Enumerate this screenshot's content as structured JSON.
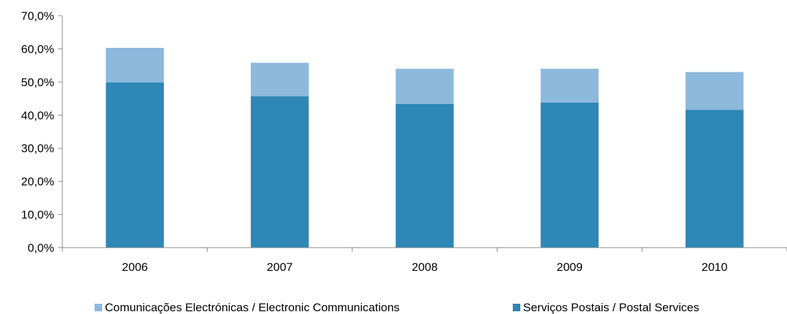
{
  "chart_data": {
    "type": "bar",
    "stacked": true,
    "categories": [
      "2006",
      "2007",
      "2008",
      "2009",
      "2010"
    ],
    "series": [
      {
        "name": "Serviços Postais / Postal Services",
        "color": "#2e87b6",
        "values": [
          49.9,
          45.7,
          43.4,
          43.8,
          41.6
        ]
      },
      {
        "name": "Comunicações Electrónicas / Electronic Communications",
        "color": "#8cb9dc",
        "values": [
          10.4,
          10.1,
          10.6,
          10.2,
          11.4
        ]
      }
    ],
    "ylim": [
      0,
      70
    ],
    "yticks": [
      "0,0%",
      "10,0%",
      "20,0%",
      "30,0%",
      "40,0%",
      "50,0%",
      "60,0%",
      "70,0%"
    ],
    "title": "",
    "xlabel": "",
    "ylabel": "",
    "grid": false,
    "legend_position": "bottom",
    "legend_order": [
      1,
      0
    ]
  }
}
